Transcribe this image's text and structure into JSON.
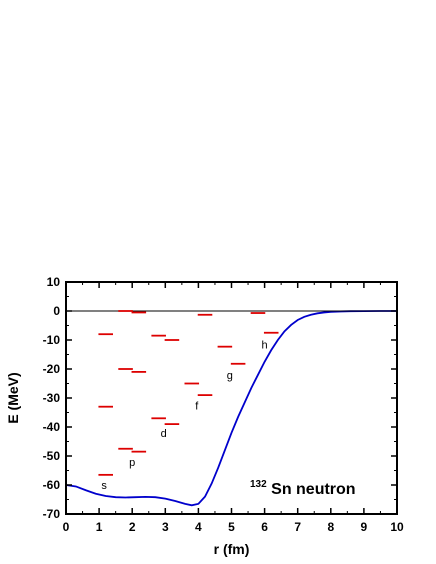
{
  "chart_data": {
    "type": "line",
    "xlabel": "r (fm)",
    "ylabel": "E (MeV)",
    "xlim": [
      0,
      10
    ],
    "ylim": [
      -70,
      10
    ],
    "x_ticks": [
      "0",
      "1",
      "2",
      "3",
      "4",
      "5",
      "6",
      "7",
      "8",
      "9",
      "10"
    ],
    "y_ticks": [
      "10",
      "0",
      "-10",
      "-20",
      "-30",
      "-40",
      "-50",
      "-60",
      "-70"
    ],
    "grid": false,
    "annotation": {
      "superscript": "132",
      "text": "Sn neutron"
    },
    "series": [
      {
        "color": "#0000cc",
        "x": [
          0.0,
          0.3,
          0.6,
          0.9,
          1.2,
          1.5,
          1.8,
          2.1,
          2.4,
          2.7,
          3.0,
          3.3,
          3.6,
          3.8,
          4.0,
          4.2,
          4.4,
          4.6,
          4.8,
          5.0,
          5.2,
          5.4,
          5.6,
          5.8,
          6.0,
          6.2,
          6.4,
          6.6,
          6.8,
          7.0,
          7.2,
          7.4,
          7.6,
          7.8,
          8.0,
          8.3,
          8.6,
          9.0,
          9.5,
          10.0
        ],
        "y": [
          -60.0,
          -60.5,
          -61.8,
          -63.0,
          -63.8,
          -64.2,
          -64.3,
          -64.2,
          -64.1,
          -64.2,
          -64.7,
          -65.5,
          -66.5,
          -67.0,
          -66.5,
          -64.0,
          -59.5,
          -54.0,
          -48.0,
          -42.0,
          -36.5,
          -31.5,
          -26.5,
          -22.0,
          -17.5,
          -13.5,
          -10.0,
          -7.0,
          -4.8,
          -3.1,
          -2.0,
          -1.3,
          -0.8,
          -0.5,
          -0.3,
          -0.15,
          -0.07,
          -0.03,
          -0.01,
          0.0
        ]
      },
      {
        "color": "#000000",
        "x": [
          0,
          10
        ],
        "y": [
          0,
          0
        ]
      }
    ],
    "levels": [
      {
        "group": "s",
        "segments": [
          {
            "x": 1.2,
            "e": -56.5
          },
          {
            "x": 1.2,
            "e": -33.0
          },
          {
            "x": 1.2,
            "e": -8.0
          }
        ]
      },
      {
        "group": "p",
        "segments": [
          {
            "x": 1.8,
            "e": -47.5
          },
          {
            "x": 2.2,
            "e": -48.5
          },
          {
            "x": 1.8,
            "e": -20.0
          },
          {
            "x": 2.2,
            "e": -21.0
          },
          {
            "x": 1.8,
            "e": 0.0
          },
          {
            "x": 2.2,
            "e": -0.5
          }
        ]
      },
      {
        "group": "d",
        "segments": [
          {
            "x": 2.8,
            "e": -37.0
          },
          {
            "x": 3.2,
            "e": -39.0
          },
          {
            "x": 2.8,
            "e": -8.5
          },
          {
            "x": 3.2,
            "e": -10.0
          }
        ]
      },
      {
        "group": "f",
        "segments": [
          {
            "x": 3.8,
            "e": -25.0
          },
          {
            "x": 4.2,
            "e": -29.0
          },
          {
            "x": 4.2,
            "e": -1.3
          }
        ]
      },
      {
        "group": "g",
        "segments": [
          {
            "x": 4.8,
            "e": -12.3
          },
          {
            "x": 5.2,
            "e": -18.2
          }
        ]
      },
      {
        "group": "h",
        "segments": [
          {
            "x": 5.8,
            "e": -0.7
          },
          {
            "x": 6.2,
            "e": -7.5
          }
        ]
      }
    ],
    "level_color": "#dd0000",
    "level_labels": [
      {
        "text": "s",
        "x": 1.15,
        "e": -60.0
      },
      {
        "text": "p",
        "x": 2.0,
        "e": -52.0
      },
      {
        "text": "d",
        "x": 2.95,
        "e": -42.0
      },
      {
        "text": "f",
        "x": 3.95,
        "e": -32.5
      },
      {
        "text": "g",
        "x": 4.95,
        "e": -22.0
      },
      {
        "text": "h",
        "x": 6.0,
        "e": -11.5
      }
    ]
  }
}
